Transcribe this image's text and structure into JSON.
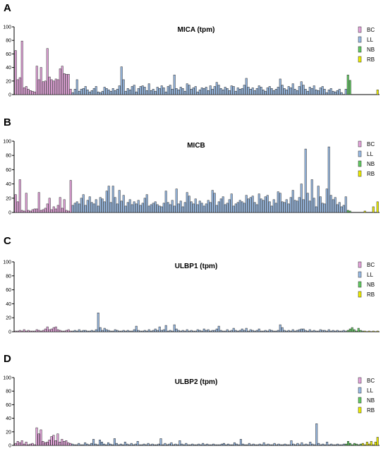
{
  "figure": {
    "panels": [
      {
        "letter": "A",
        "title": "MICA (tpm)"
      },
      {
        "letter": "B",
        "title": "MICB"
      },
      {
        "letter": "C",
        "title": "ULBP1 (tpm)"
      },
      {
        "letter": "D",
        "title": "ULBP2 (tpm)"
      }
    ]
  },
  "legend": [
    {
      "name": "BC",
      "color": "#e7a6de"
    },
    {
      "name": "LL",
      "color": "#9bbce6"
    },
    {
      "name": "NB",
      "color": "#63cc63"
    },
    {
      "name": "RB",
      "color": "#f0f000"
    }
  ],
  "colors": {
    "bar_stroke": "#222222",
    "axis": "#000000"
  },
  "chart_data": [
    {
      "type": "bar",
      "title": "MICA (tpm)",
      "ylim": [
        0,
        100
      ],
      "yticks": [
        0,
        20,
        40,
        60,
        80,
        100
      ],
      "legend_position": "top-right",
      "group_counts": {
        "BC": 27,
        "LL": 130,
        "NB": 2,
        "RB": 13
      },
      "series": [
        {
          "name": "BC",
          "values": [
            65,
            22,
            25,
            79,
            10,
            12,
            8,
            6,
            5,
            4,
            42,
            22,
            40,
            19,
            20,
            68,
            26,
            22,
            20,
            23,
            22,
            38,
            42,
            31,
            30,
            30,
            8
          ]
        },
        {
          "name": "LL",
          "values": [
            3,
            8,
            22,
            5,
            8,
            9,
            12,
            7,
            4,
            6,
            9,
            12,
            4,
            3,
            5,
            11,
            9,
            7,
            5,
            9,
            6,
            8,
            13,
            41,
            22,
            5,
            9,
            7,
            12,
            14,
            4,
            9,
            12,
            13,
            11,
            6,
            16,
            6,
            8,
            5,
            11,
            9,
            13,
            10,
            4,
            12,
            14,
            8,
            29,
            9,
            7,
            11,
            9,
            5,
            16,
            14,
            8,
            10,
            12,
            4,
            7,
            10,
            9,
            11,
            6,
            13,
            8,
            12,
            18,
            14,
            9,
            7,
            11,
            9,
            6,
            13,
            12,
            5,
            10,
            8,
            9,
            14,
            24,
            11,
            8,
            10,
            6,
            9,
            13,
            11,
            7,
            5,
            10,
            12,
            9,
            6,
            8,
            11,
            23,
            14,
            9,
            7,
            12,
            10,
            16,
            8,
            6,
            12,
            19,
            14,
            8,
            5,
            11,
            9,
            13,
            7,
            6,
            10,
            12,
            8,
            3,
            7,
            9,
            5,
            4,
            6,
            8,
            3,
            0,
            8
          ]
        },
        {
          "name": "NB",
          "values": [
            29,
            21
          ]
        },
        {
          "name": "RB",
          "values": [
            0,
            0,
            0,
            0,
            0,
            0,
            0,
            0,
            0,
            0,
            0,
            0,
            7
          ]
        }
      ]
    },
    {
      "type": "bar",
      "title": "MICB",
      "ylim": [
        0,
        100
      ],
      "yticks": [
        0,
        20,
        40,
        60,
        80,
        100
      ],
      "legend_position": "top-right",
      "group_counts": {
        "BC": 27,
        "LL": 130,
        "NB": 2,
        "RB": 13
      },
      "series": [
        {
          "name": "BC",
          "values": [
            25,
            15,
            46,
            3,
            2,
            27,
            3,
            2,
            4,
            5,
            5,
            28,
            3,
            4,
            6,
            12,
            20,
            4,
            8,
            5,
            10,
            21,
            6,
            18,
            3,
            2,
            45
          ]
        },
        {
          "name": "LL",
          "values": [
            10,
            13,
            15,
            12,
            20,
            25,
            10,
            17,
            22,
            14,
            12,
            18,
            9,
            21,
            19,
            15,
            30,
            37,
            14,
            37,
            21,
            12,
            31,
            16,
            24,
            9,
            14,
            18,
            11,
            15,
            12,
            17,
            10,
            13,
            20,
            25,
            9,
            11,
            13,
            15,
            11,
            9,
            8,
            13,
            30,
            14,
            11,
            17,
            9,
            33,
            12,
            16,
            8,
            14,
            28,
            23,
            15,
            12,
            19,
            11,
            16,
            13,
            9,
            12,
            17,
            14,
            31,
            27,
            10,
            15,
            19,
            22,
            11,
            13,
            18,
            26,
            9,
            12,
            14,
            17,
            15,
            13,
            24,
            19,
            21,
            23,
            14,
            11,
            26,
            19,
            17,
            22,
            24,
            15,
            9,
            18,
            13,
            29,
            27,
            15,
            14,
            18,
            12,
            21,
            31,
            17,
            16,
            21,
            40,
            18,
            89,
            27,
            16,
            46,
            20,
            8,
            37,
            22,
            13,
            12,
            33,
            92,
            24,
            18,
            21,
            11,
            14,
            8,
            10,
            22
          ]
        },
        {
          "name": "NB",
          "values": [
            3,
            2
          ]
        },
        {
          "name": "RB",
          "values": [
            0,
            0,
            0,
            0,
            0,
            0,
            2,
            0,
            0,
            0,
            8,
            0,
            15
          ]
        }
      ]
    },
    {
      "type": "bar",
      "title": "ULBP1 (tpm)",
      "ylim": [
        0,
        100
      ],
      "yticks": [
        0,
        20,
        40,
        60,
        80,
        100
      ],
      "legend_position": "top-right",
      "group_counts": {
        "BC": 27,
        "LL": 130,
        "NB": 8,
        "RB": 7
      },
      "series": [
        {
          "name": "BC",
          "values": [
            1,
            1,
            2,
            1,
            3,
            1,
            2,
            1,
            1,
            1,
            3,
            2,
            1,
            2,
            4,
            7,
            3,
            4,
            6,
            7,
            3,
            2,
            1,
            1,
            2,
            3,
            1
          ]
        },
        {
          "name": "LL",
          "values": [
            1,
            2,
            1,
            3,
            1,
            2,
            2,
            1,
            1,
            2,
            1,
            3,
            27,
            6,
            2,
            5,
            3,
            2,
            1,
            1,
            3,
            2,
            1,
            1,
            2,
            1,
            2,
            1,
            1,
            3,
            8,
            2,
            1,
            1,
            2,
            1,
            3,
            1,
            2,
            4,
            2,
            7,
            2,
            3,
            9,
            1,
            2,
            1,
            10,
            4,
            2,
            1,
            2,
            1,
            3,
            1,
            2,
            1,
            1,
            3,
            2,
            1,
            4,
            2,
            3,
            1,
            2,
            2,
            4,
            8,
            2,
            1,
            1,
            3,
            1,
            2,
            5,
            2,
            1,
            2,
            4,
            2,
            5,
            1,
            3,
            2,
            1,
            2,
            4,
            1,
            1,
            2,
            1,
            3,
            2,
            1,
            1,
            2,
            10,
            6,
            2,
            1,
            2,
            1,
            3,
            1,
            2,
            3,
            4,
            4,
            2,
            1,
            3,
            1,
            2,
            1,
            1,
            3,
            2,
            2,
            1,
            3,
            1,
            2,
            1,
            2,
            1,
            1,
            2,
            1
          ]
        },
        {
          "name": "NB",
          "values": [
            2,
            4,
            6,
            3,
            1,
            5,
            2,
            1
          ]
        },
        {
          "name": "RB",
          "values": [
            1,
            0,
            1,
            0,
            1,
            0,
            1
          ]
        }
      ]
    },
    {
      "type": "bar",
      "title": "ULBP2 (tpm)",
      "ylim": [
        0,
        100
      ],
      "yticks": [
        0,
        20,
        40,
        60,
        80,
        100
      ],
      "legend_position": "top-right",
      "group_counts": {
        "BC": 27,
        "LL": 130,
        "NB": 8,
        "RB": 8
      },
      "series": [
        {
          "name": "BC",
          "values": [
            3,
            6,
            4,
            7,
            2,
            5,
            1,
            2,
            3,
            1,
            26,
            17,
            23,
            6,
            4,
            5,
            8,
            13,
            15,
            7,
            17,
            5,
            9,
            6,
            7,
            4,
            3
          ]
        },
        {
          "name": "LL",
          "values": [
            2,
            1,
            1,
            3,
            1,
            1,
            4,
            2,
            1,
            3,
            9,
            2,
            1,
            8,
            5,
            2,
            1,
            4,
            2,
            1,
            10,
            3,
            1,
            2,
            1,
            5,
            2,
            1,
            3,
            1,
            2,
            6,
            1,
            1,
            2,
            1,
            3,
            1,
            2,
            1,
            1,
            2,
            10,
            1,
            3,
            1,
            2,
            4,
            1,
            2,
            1,
            7,
            2,
            1,
            3,
            1,
            1,
            2,
            1,
            1,
            2,
            1,
            3,
            1,
            2,
            1,
            1,
            2,
            1,
            1,
            1,
            2,
            3,
            1,
            2,
            1,
            1,
            4,
            2,
            1,
            9,
            2,
            1,
            1,
            3,
            1,
            2,
            1,
            1,
            2,
            1,
            4,
            1,
            2,
            1,
            1,
            3,
            1,
            2,
            1,
            1,
            2,
            1,
            1,
            7,
            2,
            1,
            3,
            1,
            4,
            1,
            2,
            1,
            5,
            2,
            1,
            32,
            3,
            1,
            2,
            1,
            5,
            1,
            2,
            1,
            1,
            2,
            1,
            1,
            2
          ]
        },
        {
          "name": "NB",
          "values": [
            2,
            6,
            3,
            1,
            3,
            2,
            1,
            2
          ]
        },
        {
          "name": "RB",
          "values": [
            3,
            1,
            5,
            2,
            6,
            1,
            5,
            12
          ]
        }
      ]
    }
  ]
}
